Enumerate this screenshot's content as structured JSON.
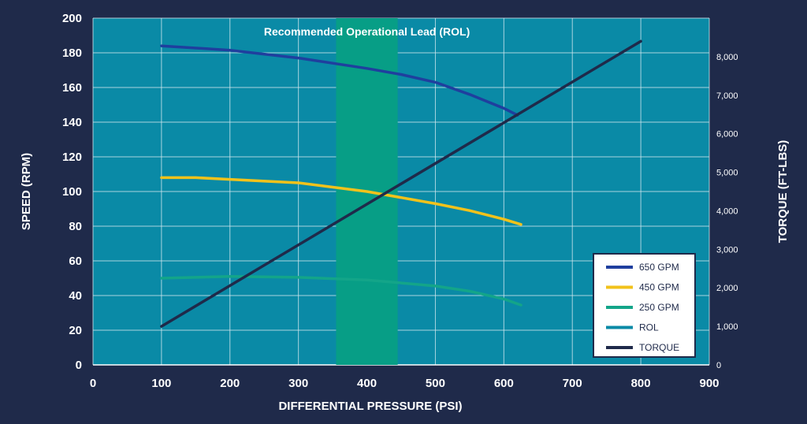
{
  "chart_data": {
    "type": "line",
    "xlabel": "DIFFERENTIAL PRESSURE (PSI)",
    "ylabel": "SPEED (RPM)",
    "y2label": "TORQUE (FT-LBS)",
    "xlim": [
      0,
      900
    ],
    "ylim": [
      0,
      200
    ],
    "y2lim": [
      0,
      9000
    ],
    "x_ticks": [
      "0",
      "100",
      "200",
      "300",
      "400",
      "500",
      "600",
      "700",
      "800",
      "900"
    ],
    "y_ticks": [
      "0",
      "20",
      "40",
      "60",
      "80",
      "100",
      "120",
      "140",
      "160",
      "180",
      "200"
    ],
    "y2_ticks": [
      "0",
      "1,000",
      "2,000",
      "3,000",
      "4,000",
      "5,000",
      "6,000",
      "7,000",
      "8,000"
    ],
    "grid": true,
    "legend_position": "bottom-right",
    "band": {
      "label": "Recommended Operational Lead (ROL)",
      "x": [
        355,
        445
      ],
      "color": "#079e86"
    },
    "series": [
      {
        "name": "650 GPM",
        "axis": "left",
        "color": "#1f3f9e",
        "x": [
          100,
          200,
          300,
          350,
          400,
          450,
          500,
          550,
          600,
          620
        ],
        "y": [
          184,
          181.5,
          177,
          174,
          171,
          167.5,
          163,
          156,
          148,
          144
        ]
      },
      {
        "name": "450 GPM",
        "axis": "left",
        "color": "#f2c21b",
        "x": [
          100,
          150,
          200,
          300,
          400,
          500,
          550,
          600,
          625
        ],
        "y": [
          108,
          108,
          107,
          105,
          100,
          93,
          89,
          84,
          81
        ]
      },
      {
        "name": "250 GPM",
        "axis": "left",
        "color": "#13a589",
        "x": [
          100,
          200,
          300,
          400,
          500,
          550,
          600,
          625
        ],
        "y": [
          50,
          51,
          50.5,
          49,
          45.5,
          42.5,
          38,
          34.5
        ]
      },
      {
        "name": "ROL",
        "axis": "left",
        "color": "#0a8aa6",
        "x": [],
        "y": []
      },
      {
        "name": "TORQUE",
        "axis": "right",
        "color": "#1f2a4a",
        "x": [
          100,
          800
        ],
        "y": [
          1000,
          8400
        ]
      }
    ]
  }
}
